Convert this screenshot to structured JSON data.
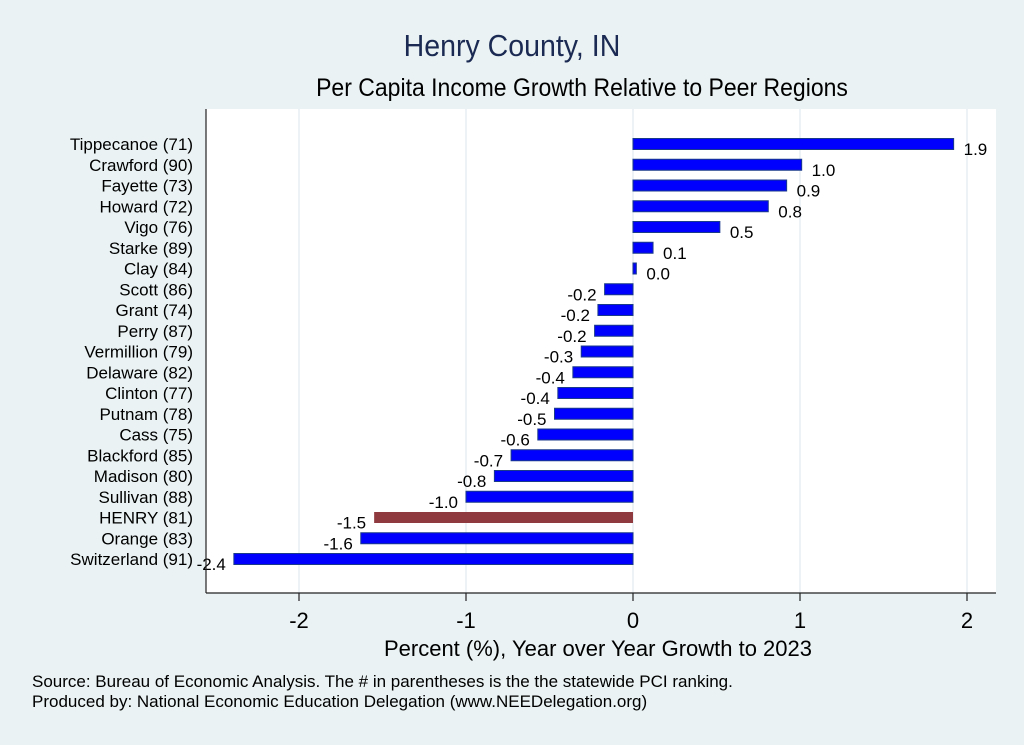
{
  "chart_data": {
    "type": "bar",
    "orientation": "horizontal",
    "title": "Henry County, IN",
    "subtitle": "Per Capita Income Growth Relative to Peer Regions",
    "xlabel": "Percent (%), Year over Year Growth to 2023",
    "ylabel": "",
    "xlim": [
      -2.5,
      2.1
    ],
    "xticks": [
      -2,
      -1,
      0,
      1,
      2
    ],
    "grid": "vertical",
    "legend": "none",
    "highlight_category": "HENRY (81)",
    "colors": {
      "bar": "#0000ff",
      "highlight": "#8f3a3f",
      "bar_edge": "#1a3a8a",
      "plot_bg": "#ffffff",
      "page_bg": "#eaf2f3",
      "grid": "#e6eef2",
      "title": "#1a2a52"
    },
    "categories": [
      "Tippecanoe (71)",
      "Crawford (90)",
      "Fayette (73)",
      "Howard (72)",
      "Vigo (76)",
      "Starke (89)",
      "Clay (84)",
      "Scott (86)",
      "Grant (74)",
      "Perry (87)",
      "Vermillion (79)",
      "Delaware (82)",
      "Clinton (77)",
      "Putnam (78)",
      "Cass (75)",
      "Blackford (85)",
      "Madison (80)",
      "Sullivan (88)",
      "HENRY (81)",
      "Orange (83)",
      "Switzerland (91)"
    ],
    "values": [
      1.92,
      1.01,
      0.92,
      0.81,
      0.52,
      0.12,
      0.02,
      -0.17,
      -0.21,
      -0.23,
      -0.31,
      -0.36,
      -0.45,
      -0.47,
      -0.57,
      -0.73,
      -0.83,
      -1.0,
      -1.55,
      -1.63,
      -2.39
    ],
    "data_labels": [
      "1.9",
      "1.0",
      "0.9",
      "0.8",
      "0.5",
      "0.1",
      "0.0",
      "-0.2",
      "-0.2",
      "-0.2",
      "-0.3",
      "-0.4",
      "-0.4",
      "-0.5",
      "-0.6",
      "-0.7",
      "-0.8",
      "-1.0",
      "-1.5",
      "-1.6",
      "-2.4"
    ]
  },
  "footnote": {
    "line1": "Source: Bureau of Economic Analysis. The # in parentheses is the the statewide PCI ranking.",
    "line2": "Produced by: National Economic Education Delegation (www.NEEDelegation.org)"
  }
}
